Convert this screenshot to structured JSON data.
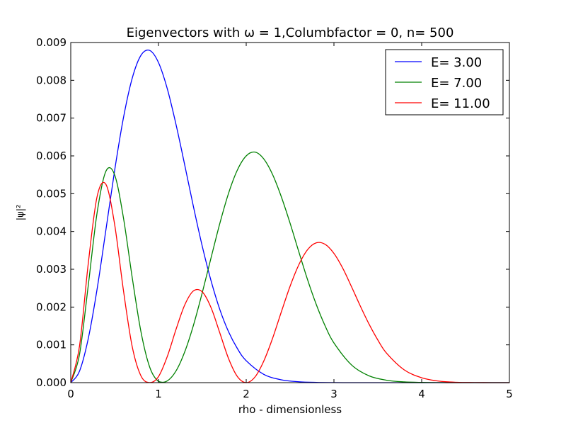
{
  "chart_data": {
    "type": "line",
    "title": "Eigenvectors with ω = 1,Columbfactor = 0, n= 500",
    "xlabel": "rho - dimensionless",
    "ylabel": "|ψ|²",
    "xlim": [
      0,
      5
    ],
    "ylim": [
      0,
      0.009
    ],
    "xticks": [
      "0",
      "1",
      "2",
      "3",
      "4",
      "5"
    ],
    "yticks": [
      "0.000",
      "0.001",
      "0.002",
      "0.003",
      "0.004",
      "0.005",
      "0.006",
      "0.007",
      "0.008",
      "0.009"
    ],
    "grid": false,
    "legend_position": "top-right",
    "series": [
      {
        "name": "E= 3.00",
        "color": "#0000ff",
        "x": [
          0,
          0.1,
          0.2,
          0.3,
          0.4,
          0.5,
          0.6,
          0.7,
          0.8,
          0.9,
          1.0,
          1.1,
          1.2,
          1.3,
          1.4,
          1.5,
          1.6,
          1.7,
          1.8,
          1.9,
          2.0,
          2.2,
          2.4,
          2.6,
          2.8,
          3.0,
          3.2,
          3.4,
          3.6,
          3.8,
          4.0,
          4.5,
          5.0
        ],
        "y": [
          0,
          0.000305,
          0.00117,
          0.00247,
          0.00403,
          0.00561,
          0.007,
          0.00805,
          0.00866,
          0.00879,
          0.00847,
          0.00778,
          0.00683,
          0.00575,
          0.00464,
          0.0036,
          0.00269,
          0.00193,
          0.00134,
          0.0009,
          0.00058,
          0.00022,
          7.5e-05,
          2.4e-05,
          7e-06,
          2e-06,
          0,
          0,
          0,
          0,
          0,
          0,
          0
        ]
      },
      {
        "name": "E= 7.00",
        "color": "#008000",
        "x": [
          0,
          0.1,
          0.2,
          0.3,
          0.4,
          0.5,
          0.6,
          0.7,
          0.8,
          0.9,
          1.0,
          1.1,
          1.2,
          1.3,
          1.4,
          1.5,
          1.6,
          1.7,
          1.8,
          1.9,
          2.0,
          2.1,
          2.2,
          2.3,
          2.4,
          2.5,
          2.6,
          2.7,
          2.8,
          2.9,
          3.0,
          3.2,
          3.4,
          3.6,
          3.8,
          4.0,
          4.2,
          4.4,
          4.6,
          5.0
        ],
        "y": [
          0,
          0.00075,
          0.00258,
          0.00449,
          0.00559,
          0.0055,
          0.00437,
          0.00279,
          0.00135,
          0.00041,
          3.3e-05,
          4.6e-05,
          0.00031,
          0.00082,
          0.00153,
          0.00239,
          0.00331,
          0.00422,
          0.00502,
          0.00563,
          0.006,
          0.0061,
          0.00592,
          0.00551,
          0.00492,
          0.00422,
          0.00346,
          0.00272,
          0.00206,
          0.0015,
          0.00105,
          0.00047,
          0.00018,
          6.4e-05,
          2e-05,
          6e-06,
          2e-06,
          0,
          0,
          0
        ]
      },
      {
        "name": "E= 11.00",
        "color": "#ff0000",
        "x": [
          0,
          0.1,
          0.2,
          0.3,
          0.4,
          0.5,
          0.6,
          0.7,
          0.8,
          0.9,
          1.0,
          1.1,
          1.2,
          1.3,
          1.4,
          1.5,
          1.6,
          1.7,
          1.8,
          1.9,
          2.0,
          2.1,
          2.2,
          2.3,
          2.4,
          2.5,
          2.6,
          2.7,
          2.8,
          2.9,
          3.0,
          3.1,
          3.2,
          3.3,
          3.4,
          3.5,
          3.6,
          3.8,
          4.0,
          4.2,
          4.4,
          4.6,
          4.8,
          5.0
        ],
        "y": [
          0,
          0.00097,
          0.00316,
          0.00492,
          0.00525,
          0.00419,
          0.00245,
          0.00096,
          0.00018,
          2e-06,
          0.00016,
          0.00069,
          0.00141,
          0.00206,
          0.00243,
          0.0024,
          0.00198,
          0.00131,
          0.00063,
          0.00016,
          1e-06,
          0.00015,
          0.00057,
          0.00117,
          0.00187,
          0.00255,
          0.00312,
          0.00352,
          0.0037,
          0.00366,
          0.00342,
          0.00303,
          0.00254,
          0.00203,
          0.00155,
          0.00113,
          0.00078,
          0.00034,
          0.00013,
          4e-05,
          1e-05,
          3e-06,
          0,
          0
        ]
      }
    ]
  }
}
